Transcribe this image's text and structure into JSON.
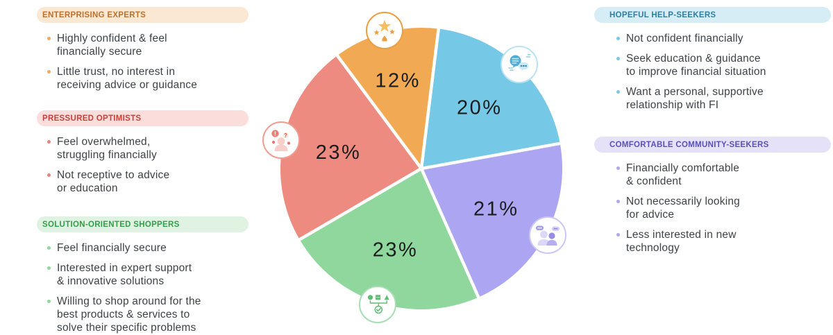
{
  "canvas": {
    "background": "#FFFFFF"
  },
  "personas_left": [
    {
      "id": "enterprising-experts",
      "title": "ENTERPRISING EXPERTS",
      "title_color": "#BE702B",
      "pill_bg": "#FBE8D2",
      "accent": "#F0A85C",
      "bullets": [
        "Highly confident & feel\nfinancially secure",
        "Little trust, no interest in\nreceiving advice or guidance"
      ]
    },
    {
      "id": "pressured-optimists",
      "title": "PRESSURED OPTIMISTS",
      "title_color": "#C8413A",
      "pill_bg": "#FBDEDC",
      "accent": "#E8837B",
      "bullets": [
        "Feel overwhelmed,\nstruggling financially",
        "Not receptive to advice\nor education"
      ]
    },
    {
      "id": "solution-oriented-shoppers",
      "title": "SOLUTION-ORIENTED SHOPPERS",
      "title_color": "#2FA04A",
      "pill_bg": "#E0F2E2",
      "accent": "#8FD79C",
      "bullets": [
        "Feel financially secure",
        "Interested in expert support\n& innovative solutions",
        "Willing to shop around for the\nbest products & services to\nsolve their specific problems"
      ]
    }
  ],
  "personas_right": [
    {
      "id": "hopeful-help-seekers",
      "title": "HOPEFUL HELP-SEEKERS",
      "title_color": "#2D7F9F",
      "pill_bg": "#D6EDF6",
      "accent": "#79C8E5",
      "bullets": [
        "Not confident financially",
        "Seek education & guidance\nto improve financial situation",
        "Want a personal, supportive\nrelationship with FI"
      ]
    },
    {
      "id": "comfortable-community-seekers",
      "title": "COMFORTABLE COMMUNITY-SEEKERS",
      "title_color": "#5A50BB",
      "pill_bg": "#E4E1F8",
      "accent": "#ACA5F2",
      "bullets": [
        "Financially comfortable\n& confident",
        "Not necessarily looking\nfor advice",
        "Less interested in new\ntechnology"
      ]
    }
  ],
  "chart_data": {
    "type": "pie",
    "unit": "%",
    "rotation_deg_clockwise_from_top": 7,
    "slices": [
      {
        "label": "Hopeful Help-Seekers",
        "value": 20,
        "display_label": "20%",
        "color": "#75C8E6",
        "icon": "chat-bubbles-icon",
        "icon_border": "#B9E2F2"
      },
      {
        "label": "Comfortable Community-Seekers",
        "value": 21,
        "display_label": "21%",
        "color": "#ACA5F2",
        "icon": "community-icon",
        "icon_border": "#CCC6F6"
      },
      {
        "label": "Solution-Oriented Shoppers",
        "value": 23,
        "display_label": "23%",
        "color": "#8FD79C",
        "icon": "solution-shapes-icon",
        "icon_border": "#A6DDB1"
      },
      {
        "label": "Pressured Optimists",
        "value": 23,
        "display_label": "23%",
        "color": "#EE8B80",
        "icon": "overwhelmed-person-icon",
        "icon_border": "#F19B91"
      },
      {
        "label": "Enterprising Experts",
        "value": 12,
        "display_label": "12%",
        "color": "#F2A953",
        "icon": "stars-icon",
        "icon_border": "#EC9D3E"
      }
    ],
    "value_label_color": "#1B1C1E",
    "legend": "none",
    "grid": "off"
  }
}
